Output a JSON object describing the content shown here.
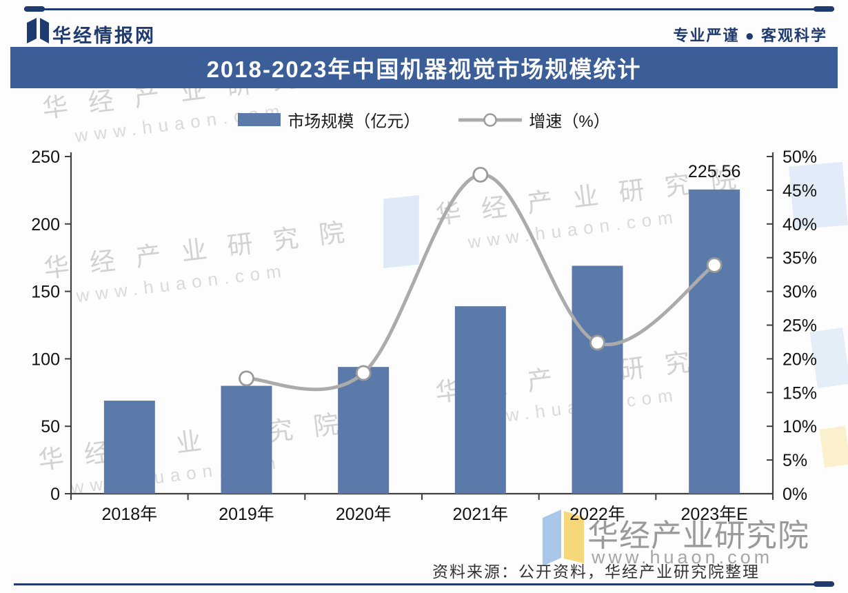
{
  "header": {
    "brand": "华经情报网",
    "tagline": "专业严谨 ● 客观科学"
  },
  "title": "2018-2023年中国机器视觉市场规模统计",
  "legend": [
    {
      "label": "市场规模（亿元）"
    },
    {
      "label": "增速（%）"
    }
  ],
  "watermark": {
    "line1": "华经产业研究院",
    "line2": "www.huaon.com"
  },
  "footer": {
    "source": "资料来源：公开资料，华经产业研究院整理"
  },
  "colors": {
    "navy": "#1e3a6e",
    "title_bg": "#3b5e99",
    "bar": "#5b7aa9",
    "line": "#ababab",
    "marker_stroke": "#9a9a9a",
    "axis": "#404040",
    "text": "#111111"
  },
  "chart_data": {
    "type": "bar",
    "title": "2018-2023年中国机器视觉市场规模统计",
    "categories": [
      "2018年",
      "2019年",
      "2020年",
      "2021年",
      "2022年",
      "2023年E"
    ],
    "series": [
      {
        "name": "市场规模（亿元）",
        "type": "bar",
        "axis": "left",
        "values": [
          69,
          80,
          94,
          139,
          169,
          225.56
        ]
      },
      {
        "name": "增速（%）",
        "type": "line",
        "axis": "right",
        "values": [
          null,
          17.1,
          17.9,
          47.3,
          22.4,
          33.9
        ]
      }
    ],
    "data_labels": [
      {
        "category": "2023年E",
        "text": "225.56"
      }
    ],
    "left_axis": {
      "min": 0,
      "max": 250,
      "step": 50
    },
    "right_axis": {
      "min": 0,
      "max": 50,
      "step": 5,
      "suffix": "%"
    },
    "grid": false,
    "legend_position": "top",
    "source_note": "资料来源：公开资料，华经产业研究院整理"
  }
}
